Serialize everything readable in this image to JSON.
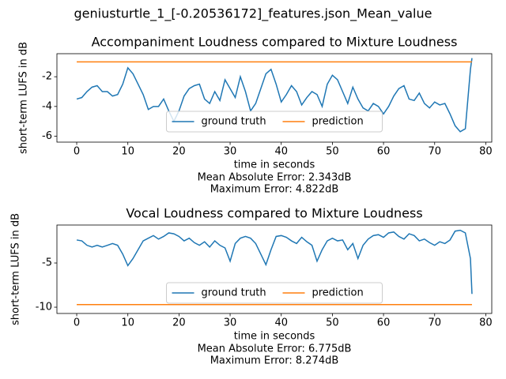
{
  "suptitle": "geniusturtle_1_[-0.20536172]_features.json_Mean_value",
  "chart_data": [
    {
      "type": "line",
      "title": "Accompaniment Loudness compared to Mixture Loudness",
      "xlabel": "time in seconds",
      "ylabel": "short-term LUFS in dB",
      "annotations": [
        "Mean Absolute Error: 2.343dB",
        "Maximum Error: 4.822dB"
      ],
      "xlim": [
        -3.87,
        81.17
      ],
      "ylim": [
        -6.4,
        -0.45
      ],
      "xticks": [
        0,
        10,
        20,
        30,
        40,
        50,
        60,
        70,
        80
      ],
      "yticks": [
        -6,
        -4,
        -2
      ],
      "legend": "lower center",
      "series": [
        {
          "name": "ground truth",
          "color": "#1f77b4",
          "x": [
            0,
            1,
            2,
            3,
            4,
            5,
            6,
            7,
            8,
            9,
            10,
            11,
            12,
            13,
            14,
            15,
            16,
            17,
            18,
            19,
            20,
            21,
            22,
            23,
            24,
            25,
            26,
            27,
            28,
            29,
            30,
            31,
            32,
            33,
            34,
            35,
            36,
            37,
            38,
            39,
            40,
            41,
            42,
            43,
            44,
            45,
            46,
            47,
            48,
            49,
            50,
            51,
            52,
            53,
            54,
            55,
            56,
            57,
            58,
            59,
            60,
            61,
            62,
            63,
            64,
            65,
            66,
            67,
            68,
            69,
            70,
            71,
            72,
            73,
            74,
            75,
            76,
            77,
            77.3
          ],
          "values": [
            -3.5,
            -3.4,
            -3.0,
            -2.7,
            -2.6,
            -3.0,
            -3.0,
            -3.3,
            -3.2,
            -2.5,
            -1.4,
            -1.8,
            -2.5,
            -3.2,
            -4.2,
            -4.0,
            -4.0,
            -3.5,
            -4.3,
            -5.0,
            -4.3,
            -3.3,
            -2.8,
            -2.6,
            -2.5,
            -3.5,
            -3.8,
            -3.0,
            -3.6,
            -2.2,
            -2.8,
            -3.4,
            -2.0,
            -3.0,
            -4.3,
            -3.8,
            -2.8,
            -1.8,
            -1.5,
            -2.5,
            -3.7,
            -3.2,
            -2.6,
            -3.0,
            -3.9,
            -3.4,
            -3.0,
            -3.2,
            -4.0,
            -2.5,
            -1.9,
            -2.2,
            -3.0,
            -3.8,
            -2.7,
            -3.5,
            -4.1,
            -4.3,
            -3.8,
            -4.0,
            -4.5,
            -4.0,
            -3.3,
            -2.8,
            -2.6,
            -3.5,
            -3.6,
            -3.1,
            -3.8,
            -4.1,
            -3.7,
            -3.9,
            -3.8,
            -4.5,
            -5.3,
            -5.7,
            -5.5,
            -1.5,
            -0.75
          ]
        },
        {
          "name": "prediction",
          "color": "#ff7f0e",
          "x": [
            0,
            77.3
          ],
          "values": [
            -1.0,
            -1.0
          ]
        }
      ]
    },
    {
      "type": "line",
      "title": "Vocal Loudness compared to Mixture Loudness",
      "xlabel": "time in seconds",
      "ylabel": "short-term LUFS in dB",
      "annotations": [
        "Mean Absolute Error: 6.775dB",
        "Maximum Error: 8.274dB"
      ],
      "xlim": [
        -3.87,
        81.17
      ],
      "ylim": [
        -10.71,
        -0.71
      ],
      "xticks": [
        0,
        10,
        20,
        30,
        40,
        50,
        60,
        70,
        80
      ],
      "yticks": [
        -10,
        -5
      ],
      "legend": "lower center",
      "series": [
        {
          "name": "ground truth",
          "color": "#1f77b4",
          "x": [
            0,
            1,
            2,
            3,
            4,
            5,
            6,
            7,
            8,
            9,
            10,
            11,
            12,
            13,
            14,
            15,
            16,
            17,
            18,
            19,
            20,
            21,
            22,
            23,
            24,
            25,
            26,
            27,
            28,
            29,
            30,
            31,
            32,
            33,
            34,
            35,
            36,
            37,
            38,
            39,
            40,
            41,
            42,
            43,
            44,
            45,
            46,
            47,
            48,
            49,
            50,
            51,
            52,
            53,
            54,
            55,
            56,
            57,
            58,
            59,
            60,
            61,
            62,
            63,
            64,
            65,
            66,
            67,
            68,
            69,
            70,
            71,
            72,
            73,
            74,
            75,
            76,
            77,
            77.3
          ],
          "values": [
            -2.4,
            -2.5,
            -3.0,
            -3.2,
            -3.0,
            -3.2,
            -3.0,
            -2.8,
            -3.0,
            -4.0,
            -5.3,
            -4.5,
            -3.5,
            -2.5,
            -2.2,
            -1.9,
            -2.3,
            -2.0,
            -1.6,
            -1.7,
            -2.0,
            -2.5,
            -2.2,
            -2.7,
            -3.0,
            -2.6,
            -3.2,
            -2.5,
            -3.0,
            -3.3,
            -4.8,
            -2.8,
            -2.2,
            -2.0,
            -2.2,
            -2.8,
            -4.0,
            -5.2,
            -3.5,
            -2.0,
            -1.9,
            -2.1,
            -2.5,
            -2.8,
            -2.1,
            -2.6,
            -3.0,
            -4.8,
            -3.5,
            -2.5,
            -2.2,
            -2.5,
            -2.4,
            -3.5,
            -2.8,
            -4.5,
            -3.0,
            -2.3,
            -1.9,
            -1.8,
            -2.1,
            -1.6,
            -1.5,
            -2.0,
            -2.3,
            -1.7,
            -1.9,
            -2.5,
            -2.3,
            -2.7,
            -3.0,
            -2.6,
            -2.8,
            -2.4,
            -1.4,
            -1.3,
            -1.6,
            -4.5,
            -8.5
          ]
        },
        {
          "name": "prediction",
          "color": "#ff7f0e",
          "x": [
            0,
            77.3
          ],
          "values": [
            -9.7,
            -9.7
          ]
        }
      ]
    }
  ]
}
